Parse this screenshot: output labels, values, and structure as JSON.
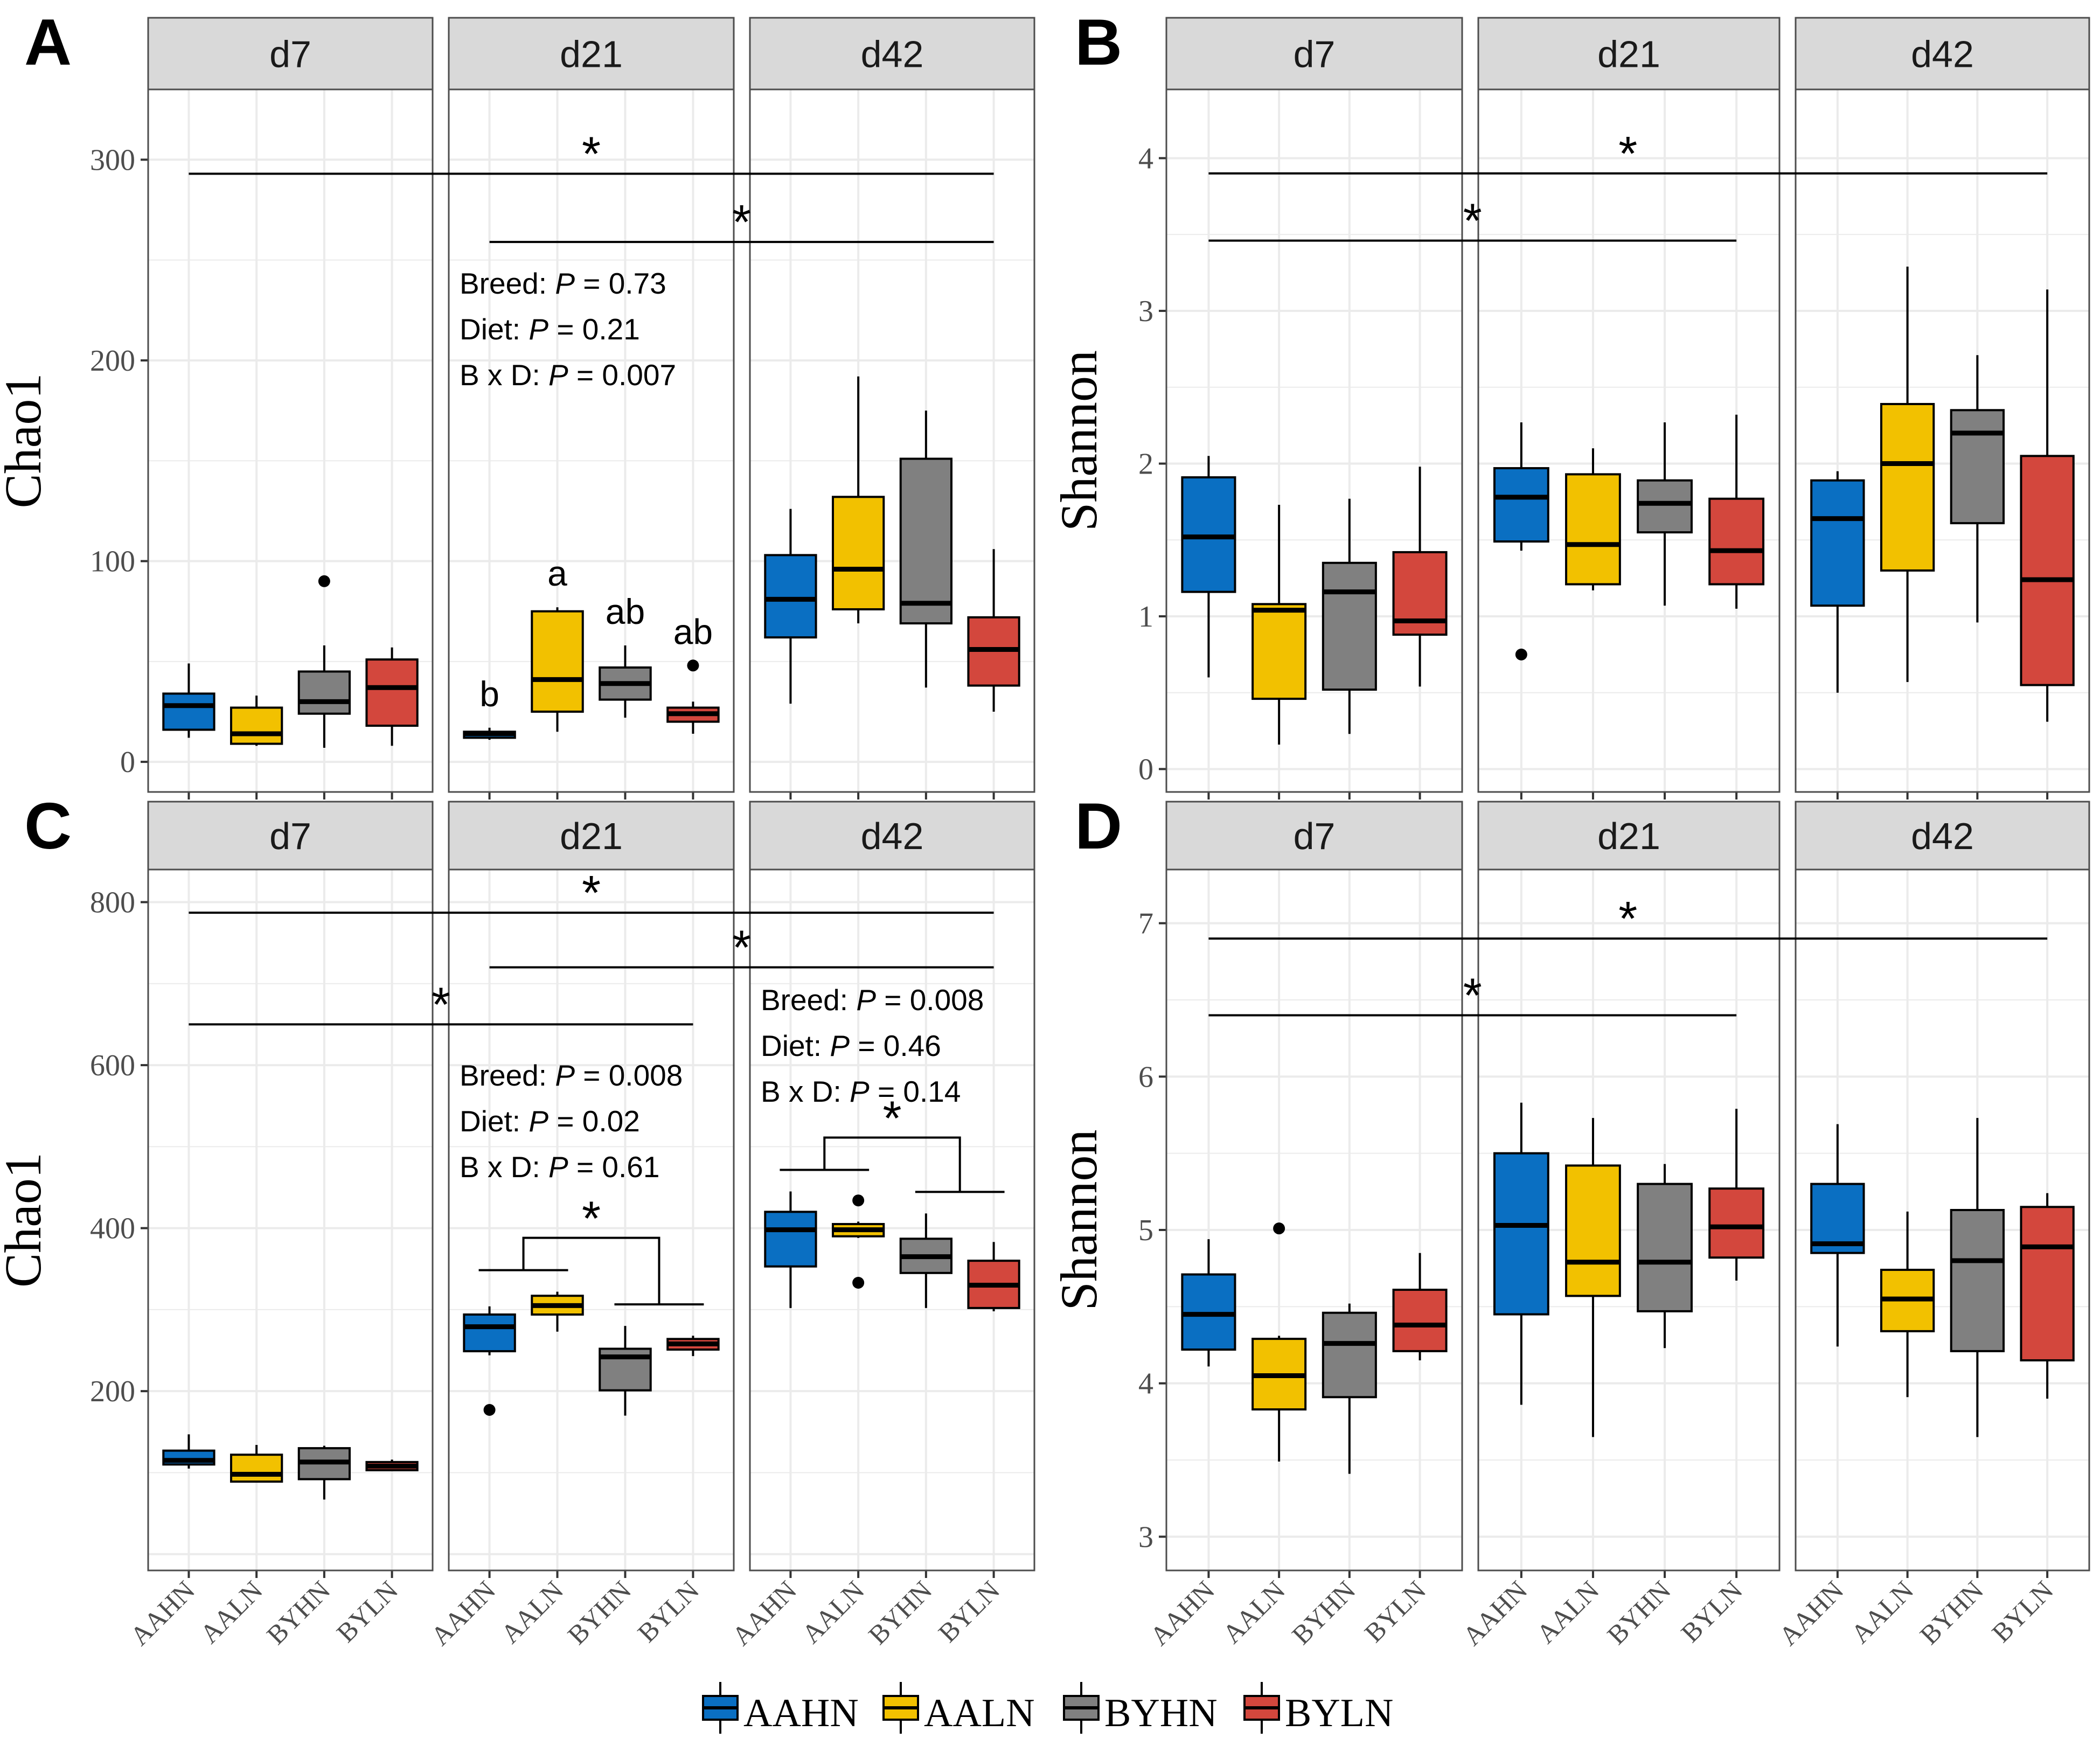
{
  "figure": {
    "panel_labels": [
      "A",
      "B",
      "C",
      "D"
    ],
    "facets": [
      "d7",
      "d21",
      "d42"
    ],
    "groups": [
      "AAHN",
      "AALN",
      "BYHN",
      "BYLN"
    ],
    "colors": {
      "AAHN": "#0a6fc2",
      "AALN": "#f2c100",
      "BYHN": "#808080",
      "BYLN": "#d3473d"
    }
  },
  "legend": {
    "entries": [
      "AAHN",
      "AALN",
      "BYHN",
      "BYLN"
    ]
  },
  "chart_data": [
    {
      "panel": "A",
      "type": "boxplot",
      "ylabel": "Chao1",
      "ylim": [
        -15,
        335
      ],
      "yticks": [
        0,
        100,
        200,
        300
      ],
      "yticklabels": [
        "0",
        "100",
        "200",
        "300"
      ],
      "facets": [
        {
          "label": "d7",
          "boxes": [
            {
              "group": "AAHN",
              "min": 12,
              "q1": 16,
              "median": 28,
              "q3": 34,
              "max": 49,
              "outliers": []
            },
            {
              "group": "AALN",
              "min": 8,
              "q1": 9,
              "median": 14,
              "q3": 27,
              "max": 33,
              "outliers": []
            },
            {
              "group": "BYHN",
              "min": 7,
              "q1": 24,
              "median": 30,
              "q3": 45,
              "max": 58,
              "outliers": [
                90
              ]
            },
            {
              "group": "BYLN",
              "min": 8,
              "q1": 18,
              "median": 37,
              "q3": 51,
              "max": 57,
              "outliers": []
            }
          ]
        },
        {
          "label": "d21",
          "boxes": [
            {
              "group": "AAHN",
              "min": 11,
              "q1": 12,
              "median": 14,
              "q3": 15,
              "max": 17,
              "outliers": []
            },
            {
              "group": "AALN",
              "min": 15,
              "q1": 25,
              "median": 41,
              "q3": 75,
              "max": 77,
              "outliers": []
            },
            {
              "group": "BYHN",
              "min": 22,
              "q1": 31,
              "median": 39,
              "q3": 47,
              "max": 58,
              "outliers": []
            },
            {
              "group": "BYLN",
              "min": 14,
              "q1": 20,
              "median": 24,
              "q3": 27,
              "max": 30,
              "outliers": [
                48
              ]
            }
          ],
          "letters": [
            "b",
            "a",
            "ab",
            "ab"
          ],
          "stats": [
            "Breed: P = 0.73",
            "Diet: P = 0.21",
            "B x D: P = 0.007"
          ]
        },
        {
          "label": "d42",
          "boxes": [
            {
              "group": "AAHN",
              "min": 29,
              "q1": 62,
              "median": 81,
              "q3": 103,
              "max": 126,
              "outliers": []
            },
            {
              "group": "AALN",
              "min": 69,
              "q1": 76,
              "median": 96,
              "q3": 132,
              "max": 192,
              "outliers": []
            },
            {
              "group": "BYHN",
              "min": 37,
              "q1": 69,
              "median": 79,
              "q3": 151,
              "max": 175,
              "outliers": []
            },
            {
              "group": "BYLN",
              "min": 25,
              "q1": 38,
              "median": 56,
              "q3": 72,
              "max": 106,
              "outliers": []
            }
          ]
        }
      ],
      "significance": [
        {
          "from": [
            "d7",
            "AAHN"
          ],
          "to": [
            "d42",
            "BYLN"
          ],
          "y": 293,
          "label": "*"
        },
        {
          "from": [
            "d21",
            "AAHN"
          ],
          "to": [
            "d42",
            "BYLN"
          ],
          "y": 259,
          "label": "*"
        }
      ]
    },
    {
      "panel": "B",
      "type": "boxplot",
      "ylabel": "Shannon",
      "ylim": [
        -0.15,
        4.45
      ],
      "yticks": [
        0,
        1,
        2,
        3,
        4
      ],
      "yticklabels": [
        "0",
        "1",
        "2",
        "3",
        "4"
      ],
      "facets": [
        {
          "label": "d7",
          "boxes": [
            {
              "group": "AAHN",
              "min": 0.6,
              "q1": 1.16,
              "median": 1.52,
              "q3": 1.91,
              "max": 2.05,
              "outliers": []
            },
            {
              "group": "AALN",
              "min": 0.16,
              "q1": 0.46,
              "median": 1.04,
              "q3": 1.08,
              "max": 1.73,
              "outliers": []
            },
            {
              "group": "BYHN",
              "min": 0.23,
              "q1": 0.52,
              "median": 1.16,
              "q3": 1.35,
              "max": 1.77,
              "outliers": []
            },
            {
              "group": "BYLN",
              "min": 0.54,
              "q1": 0.88,
              "median": 0.97,
              "q3": 1.42,
              "max": 1.98,
              "outliers": []
            }
          ]
        },
        {
          "label": "d21",
          "boxes": [
            {
              "group": "AAHN",
              "min": 1.43,
              "q1": 1.49,
              "median": 1.78,
              "q3": 1.97,
              "max": 2.27,
              "outliers": [
                0.75
              ]
            },
            {
              "group": "AALN",
              "min": 1.17,
              "q1": 1.21,
              "median": 1.47,
              "q3": 1.93,
              "max": 2.1,
              "outliers": []
            },
            {
              "group": "BYHN",
              "min": 1.07,
              "q1": 1.55,
              "median": 1.74,
              "q3": 1.89,
              "max": 2.27,
              "outliers": []
            },
            {
              "group": "BYLN",
              "min": 1.05,
              "q1": 1.21,
              "median": 1.43,
              "q3": 1.77,
              "max": 2.32,
              "outliers": []
            }
          ]
        },
        {
          "label": "d42",
          "boxes": [
            {
              "group": "AAHN",
              "min": 0.5,
              "q1": 1.07,
              "median": 1.64,
              "q3": 1.89,
              "max": 1.95,
              "outliers": []
            },
            {
              "group": "AALN",
              "min": 0.57,
              "q1": 1.3,
              "median": 2.0,
              "q3": 2.39,
              "max": 3.29,
              "outliers": []
            },
            {
              "group": "BYHN",
              "min": 0.96,
              "q1": 1.61,
              "median": 2.2,
              "q3": 2.35,
              "max": 2.71,
              "outliers": []
            },
            {
              "group": "BYLN",
              "min": 0.31,
              "q1": 0.55,
              "median": 1.24,
              "q3": 2.05,
              "max": 3.14,
              "outliers": []
            }
          ]
        }
      ],
      "significance": [
        {
          "from": [
            "d7",
            "AAHN"
          ],
          "to": [
            "d42",
            "BYLN"
          ],
          "y": 3.9,
          "label": "*"
        },
        {
          "from": [
            "d7",
            "AAHN"
          ],
          "to": [
            "d21",
            "BYLN"
          ],
          "y": 3.46,
          "label": "*"
        }
      ]
    },
    {
      "panel": "C",
      "type": "boxplot",
      "ylabel": "Chao1",
      "ylim": [
        -20,
        840
      ],
      "yticks": [
        200,
        400,
        600,
        800
      ],
      "yticklabels": [
        "200",
        "400",
        "600",
        "800"
      ],
      "facets": [
        {
          "label": "d7",
          "boxes": [
            {
              "group": "AAHN",
              "min": 105,
              "q1": 110,
              "median": 115,
              "q3": 127,
              "max": 147,
              "outliers": []
            },
            {
              "group": "AALN",
              "min": 88,
              "q1": 89,
              "median": 98,
              "q3": 122,
              "max": 134,
              "outliers": []
            },
            {
              "group": "BYHN",
              "min": 67,
              "q1": 92,
              "median": 113,
              "q3": 130,
              "max": 133,
              "outliers": []
            },
            {
              "group": "BYLN",
              "min": 102,
              "q1": 103,
              "median": 108,
              "q3": 113,
              "max": 116,
              "outliers": []
            }
          ]
        },
        {
          "label": "d21",
          "boxes": [
            {
              "group": "AAHN",
              "min": 244,
              "q1": 249,
              "median": 279,
              "q3": 294,
              "max": 304,
              "outliers": [
                177
              ]
            },
            {
              "group": "AALN",
              "min": 273,
              "q1": 294,
              "median": 305,
              "q3": 317,
              "max": 322,
              "outliers": []
            },
            {
              "group": "BYHN",
              "min": 170,
              "q1": 201,
              "median": 242,
              "q3": 252,
              "max": 280,
              "outliers": []
            },
            {
              "group": "BYLN",
              "min": 243,
              "q1": 251,
              "median": 258,
              "q3": 264,
              "max": 268,
              "outliers": []
            }
          ],
          "stats": [
            "Breed: P = 0.008",
            "Diet: P = 0.02",
            "B x D: P = 0.61"
          ],
          "bracket": {
            "left": [
              "AAHN",
              "AALN"
            ],
            "right": [
              "BYHN",
              "BYLN"
            ],
            "label": "*"
          }
        },
        {
          "label": "d42",
          "boxes": [
            {
              "group": "AAHN",
              "min": 302,
              "q1": 353,
              "median": 398,
              "q3": 420,
              "max": 445,
              "outliers": []
            },
            {
              "group": "AALN",
              "min": 388,
              "q1": 390,
              "median": 398,
              "q3": 405,
              "max": 408,
              "outliers": [
                434,
                333
              ]
            },
            {
              "group": "BYHN",
              "min": 302,
              "q1": 345,
              "median": 365,
              "q3": 387,
              "max": 418,
              "outliers": []
            },
            {
              "group": "BYLN",
              "min": 298,
              "q1": 302,
              "median": 330,
              "q3": 360,
              "max": 383,
              "outliers": []
            }
          ],
          "stats": [
            "Breed: P = 0.008",
            "Diet: P = 0.46",
            "B x D: P = 0.14"
          ],
          "bracket": {
            "left": [
              "AAHN",
              "AALN"
            ],
            "right": [
              "BYHN",
              "BYLN"
            ],
            "label": "*"
          }
        }
      ],
      "significance": [
        {
          "from": [
            "d7",
            "AAHN"
          ],
          "to": [
            "d42",
            "BYLN"
          ],
          "y": 787,
          "label": "*"
        },
        {
          "from": [
            "d21",
            "AAHN"
          ],
          "to": [
            "d42",
            "BYLN"
          ],
          "y": 720,
          "label": "*"
        },
        {
          "from": [
            "d7",
            "AAHN"
          ],
          "to": [
            "d21",
            "BYLN"
          ],
          "y": 650,
          "label": "*"
        }
      ]
    },
    {
      "panel": "D",
      "type": "boxplot",
      "ylabel": "Shannon",
      "ylim": [
        2.78,
        7.35
      ],
      "yticks": [
        3,
        4,
        5,
        6,
        7
      ],
      "yticklabels": [
        "3",
        "4",
        "5",
        "6",
        "7"
      ],
      "facets": [
        {
          "label": "d7",
          "boxes": [
            {
              "group": "AAHN",
              "min": 4.11,
              "q1": 4.22,
              "median": 4.45,
              "q3": 4.71,
              "max": 4.94,
              "outliers": []
            },
            {
              "group": "AALN",
              "min": 3.49,
              "q1": 3.83,
              "median": 4.05,
              "q3": 4.29,
              "max": 4.31,
              "outliers": [
                5.01
              ]
            },
            {
              "group": "BYHN",
              "min": 3.41,
              "q1": 3.91,
              "median": 4.26,
              "q3": 4.46,
              "max": 4.52,
              "outliers": []
            },
            {
              "group": "BYLN",
              "min": 4.15,
              "q1": 4.21,
              "median": 4.38,
              "q3": 4.61,
              "max": 4.85,
              "outliers": []
            }
          ]
        },
        {
          "label": "d21",
          "boxes": [
            {
              "group": "AAHN",
              "min": 3.86,
              "q1": 4.45,
              "median": 5.03,
              "q3": 5.5,
              "max": 5.83,
              "outliers": []
            },
            {
              "group": "AALN",
              "min": 3.65,
              "q1": 4.57,
              "median": 4.79,
              "q3": 5.42,
              "max": 5.73,
              "outliers": []
            },
            {
              "group": "BYHN",
              "min": 4.23,
              "q1": 4.47,
              "median": 4.79,
              "q3": 5.3,
              "max": 5.43,
              "outliers": []
            },
            {
              "group": "BYLN",
              "min": 4.67,
              "q1": 4.82,
              "median": 5.02,
              "q3": 5.27,
              "max": 5.79,
              "outliers": []
            }
          ]
        },
        {
          "label": "d42",
          "boxes": [
            {
              "group": "AAHN",
              "min": 4.24,
              "q1": 4.85,
              "median": 4.91,
              "q3": 5.3,
              "max": 5.69,
              "outliers": []
            },
            {
              "group": "AALN",
              "min": 3.91,
              "q1": 4.34,
              "median": 4.55,
              "q3": 4.74,
              "max": 5.12,
              "outliers": []
            },
            {
              "group": "BYHN",
              "min": 3.65,
              "q1": 4.21,
              "median": 4.8,
              "q3": 5.13,
              "max": 5.73,
              "outliers": []
            },
            {
              "group": "BYLN",
              "min": 3.9,
              "q1": 4.15,
              "median": 4.89,
              "q3": 5.15,
              "max": 5.24,
              "outliers": []
            }
          ]
        }
      ],
      "significance": [
        {
          "from": [
            "d7",
            "AAHN"
          ],
          "to": [
            "d42",
            "BYLN"
          ],
          "y": 6.9,
          "label": "*"
        },
        {
          "from": [
            "d7",
            "AAHN"
          ],
          "to": [
            "d21",
            "BYLN"
          ],
          "y": 6.4,
          "label": "*"
        }
      ]
    }
  ]
}
